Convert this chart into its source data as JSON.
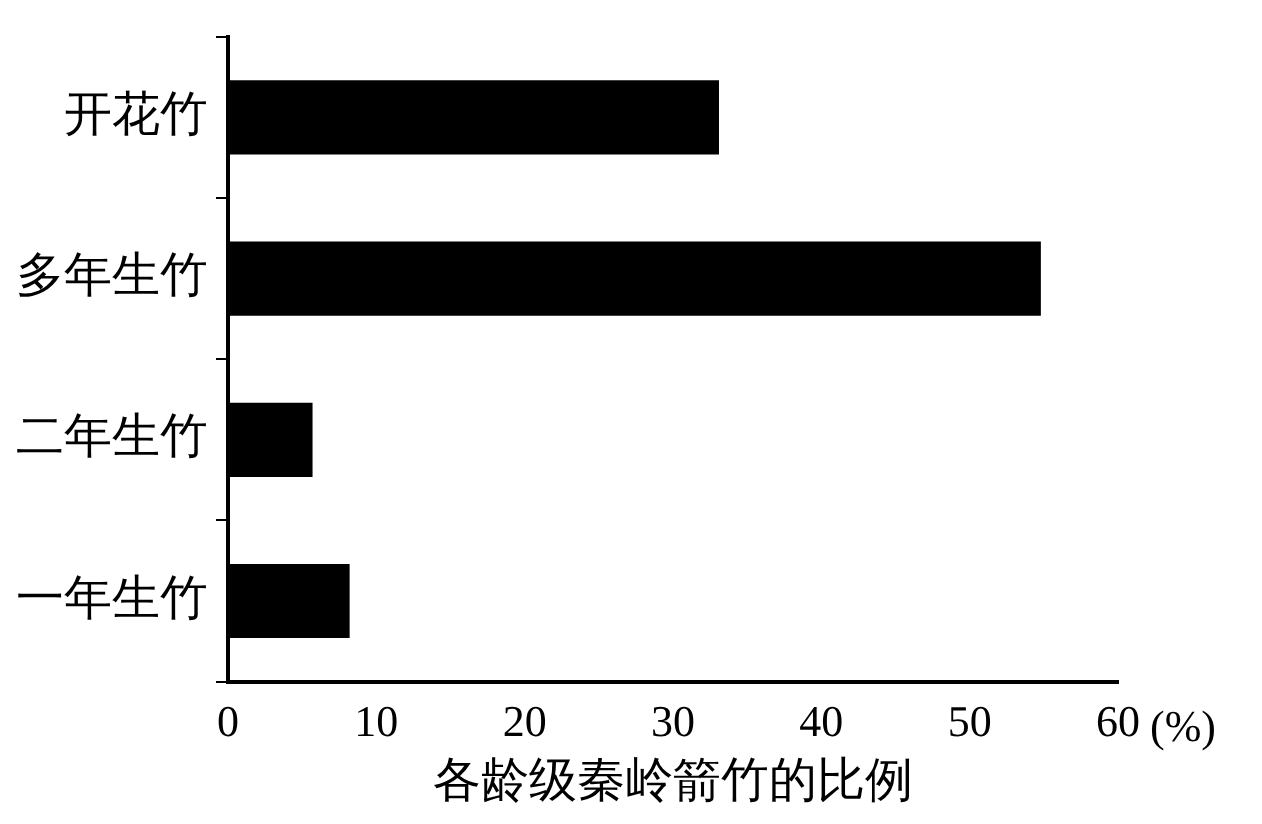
{
  "chart_data": {
    "type": "bar",
    "orientation": "horizontal",
    "xlabel": "各龄级秦岭箭竹的比例",
    "categories": [
      "开花竹",
      "多年生竹",
      "二年生竹",
      "一年生竹"
    ],
    "values": [
      33.1,
      54.8,
      5.7,
      8.2
    ],
    "color": "#000000",
    "xlim": [
      0,
      60
    ],
    "xticks": [
      0,
      10,
      20,
      30,
      40,
      50,
      60
    ],
    "grid": false,
    "legend": false,
    "annotations": [
      "(%)"
    ]
  }
}
